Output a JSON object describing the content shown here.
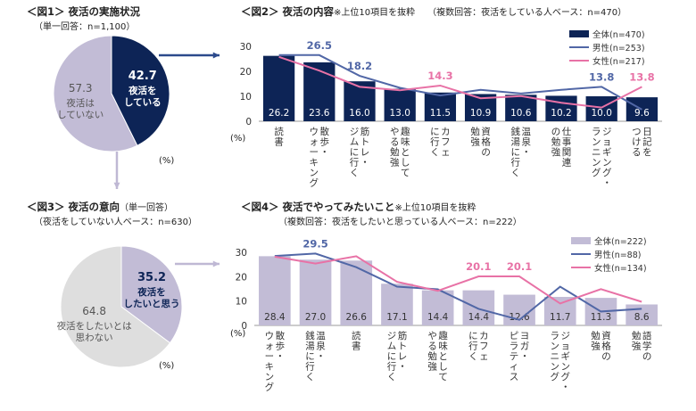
{
  "fig1": {
    "title": "＜図1＞ 夜活の実施状況",
    "base": "（単一回答：n=1,100）",
    "pct_unit": "(%)"
  },
  "fig2": {
    "title": "＜図2＞ 夜活の内容",
    "note": "※上位10項目を抜粋",
    "base": "（複数回答：夜活をしている人ベース：n=470）",
    "pct_unit": "(%)"
  },
  "fig3": {
    "title": "＜図3＞ 夜活の意向",
    "title_note": "（単一回答）",
    "base": "（夜活をしていない人ベース：n=630）",
    "pct_unit": "(%)"
  },
  "fig4": {
    "title": "＜図4＞ 夜活でやってみたいこと",
    "note": "※上位10項目を抜粋",
    "base": "（複数回答：夜活をしたいと思っている人ベース：n=222）",
    "pct_unit": "(%)"
  },
  "colors": {
    "navy": "#0d2456",
    "lavender": "#c2bcd6",
    "grey": "#dedede",
    "male": "#5167a6",
    "female": "#e872a6",
    "arrow_blue": "#2c4a8c",
    "arrow_lav": "#bfb8d4"
  },
  "chart_data": [
    {
      "type": "pie",
      "labels": [
        "夜活をしている",
        "夜活はしていない"
      ],
      "values": [
        42.7,
        57.3
      ]
    },
    {
      "type": "bar",
      "categories": [
        "読書",
        "散歩・ウォーキング",
        "筋トレ・ジムに行く",
        "趣味としてやる勉強",
        "カフェに行く",
        "資格の勉強",
        "温泉・銭湯に行く",
        "仕事関連の勉強",
        "ジョギング・ランニング",
        "日記をつける"
      ],
      "series": [
        {
          "name": "全体(n=470)",
          "values": [
            26.2,
            23.6,
            16.0,
            13.0,
            11.5,
            10.9,
            10.6,
            10.2,
            10.0,
            9.6
          ]
        },
        {
          "name": "男性(n=253)",
          "values": [
            26.5,
            26.5,
            18.2,
            13.4,
            10.3,
            12.6,
            11.1,
            12.6,
            13.8,
            4.7
          ]
        },
        {
          "name": "女性(n=217)",
          "values": [
            25.8,
            20.3,
            13.8,
            12.4,
            14.3,
            9.2,
            10.1,
            7.4,
            5.5,
            13.8
          ]
        }
      ],
      "ylim": [
        0,
        30
      ],
      "yticks": [
        0,
        10,
        20,
        30
      ],
      "labeled_line_points": [
        {
          "series": 1,
          "index": 1,
          "text": "26.5"
        },
        {
          "series": 1,
          "index": 2,
          "text": "18.2"
        },
        {
          "series": 2,
          "index": 4,
          "text": "14.3"
        },
        {
          "series": 1,
          "index": 8,
          "text": "13.8"
        },
        {
          "series": 2,
          "index": 9,
          "text": "13.8"
        }
      ]
    },
    {
      "type": "pie",
      "labels": [
        "夜活をしたいと思う",
        "夜活をしたいとは思わない"
      ],
      "values": [
        35.2,
        64.8
      ]
    },
    {
      "type": "bar",
      "categories": [
        "散歩・ウォーキング",
        "温泉・銭湯に行く",
        "読書",
        "筋トレ・ジムに行く",
        "趣味としてやる勉強",
        "カフェに行く",
        "ヨガ・ピラティス",
        "ジョギング・ランニング",
        "資格の勉強",
        "語学の勉強"
      ],
      "series": [
        {
          "name": "全体(n=222)",
          "values": [
            28.4,
            27.0,
            26.6,
            17.1,
            14.4,
            14.4,
            12.6,
            11.7,
            11.3,
            8.6
          ]
        },
        {
          "name": "男性(n=88)",
          "values": [
            28.5,
            29.5,
            23.9,
            15.9,
            14.8,
            6.8,
            2.3,
            15.9,
            5.7,
            6.8
          ]
        },
        {
          "name": "女性(n=134)",
          "values": [
            28.2,
            25.4,
            28.4,
            17.9,
            14.2,
            20.1,
            20.1,
            9.0,
            14.9,
            9.7
          ]
        }
      ],
      "ylim": [
        0,
        30
      ],
      "yticks": [
        0,
        10,
        20,
        30
      ],
      "labeled_line_points": [
        {
          "series": 1,
          "index": 1,
          "text": "29.5"
        },
        {
          "series": 2,
          "index": 5,
          "text": "20.1"
        },
        {
          "series": 2,
          "index": 6,
          "text": "20.1"
        }
      ]
    }
  ]
}
